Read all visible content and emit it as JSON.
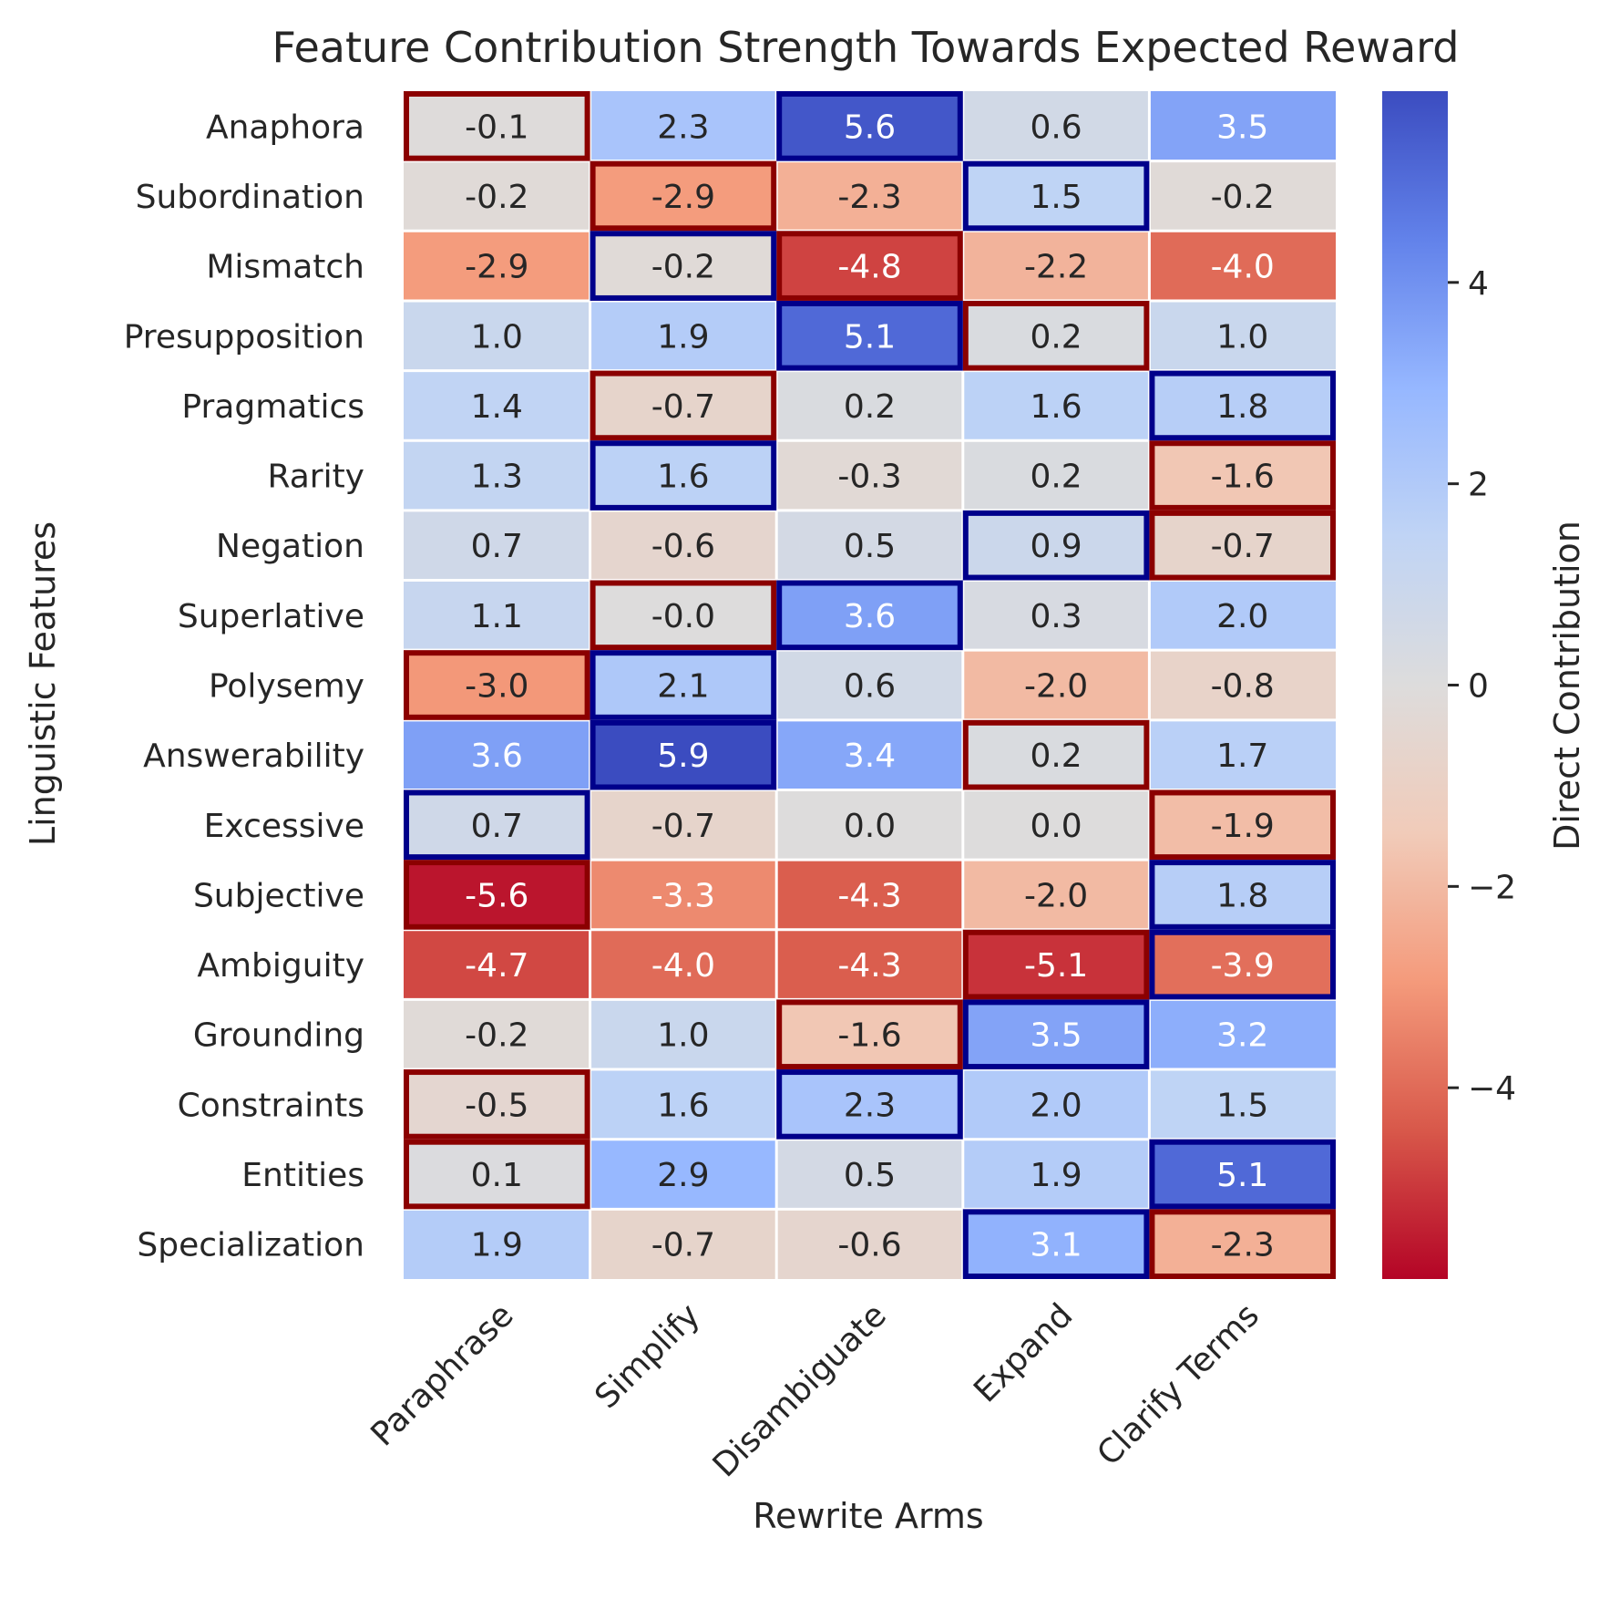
{
  "chart_data": {
    "type": "heatmap",
    "title": "Feature Contribution Strength Towards Expected Reward",
    "xlabel": "Rewrite Arms",
    "ylabel": "Linguistic Features",
    "colorbar_label": "Direct Contribution",
    "colormap": "coolwarm_r",
    "vlim": [
      -5.9,
      5.9
    ],
    "colorbar_ticks": [
      4,
      2,
      0,
      -2,
      -4
    ],
    "colorbar_tick_labels": [
      "4",
      "2",
      "0",
      "−2",
      "−4"
    ],
    "columns": [
      "Paraphrase",
      "Simplify",
      "Disambiguate",
      "Expand",
      "Clarify Terms"
    ],
    "rows": [
      "Anaphora",
      "Subordination",
      "Mismatch",
      "Presupposition",
      "Pragmatics",
      "Rarity",
      "Negation",
      "Superlative",
      "Polysemy",
      "Answerability",
      "Excessive",
      "Subjective",
      "Ambiguity",
      "Grounding",
      "Constraints",
      "Entities",
      "Specialization"
    ],
    "values": [
      [
        -0.1,
        2.3,
        5.6,
        0.6,
        3.5
      ],
      [
        -0.2,
        -2.9,
        -2.3,
        1.5,
        -0.2
      ],
      [
        -2.9,
        -0.2,
        -4.8,
        -2.2,
        -4.0
      ],
      [
        1.0,
        1.9,
        5.1,
        0.2,
        1.0
      ],
      [
        1.4,
        -0.7,
        0.2,
        1.6,
        1.8
      ],
      [
        1.3,
        1.6,
        -0.3,
        0.2,
        -1.6
      ],
      [
        0.7,
        -0.6,
        0.5,
        0.9,
        -0.7
      ],
      [
        1.1,
        -0.0,
        3.6,
        0.3,
        2.0
      ],
      [
        -3.0,
        2.1,
        0.6,
        -2.0,
        -0.8
      ],
      [
        3.6,
        5.9,
        3.4,
        0.2,
        1.7
      ],
      [
        0.7,
        -0.7,
        0.0,
        0.0,
        -1.9
      ],
      [
        -5.6,
        -3.3,
        -4.3,
        -2.0,
        1.8
      ],
      [
        -4.7,
        -4.0,
        -4.3,
        -5.1,
        -3.9
      ],
      [
        -0.2,
        1.0,
        -1.6,
        3.5,
        3.2
      ],
      [
        -0.5,
        1.6,
        2.3,
        2.0,
        1.5
      ],
      [
        0.1,
        2.9,
        0.5,
        1.9,
        5.1
      ],
      [
        1.9,
        -0.7,
        -0.6,
        3.1,
        -2.3
      ]
    ],
    "labels": [
      [
        "-0.1",
        "2.3",
        "5.6",
        "0.6",
        "3.5"
      ],
      [
        "-0.2",
        "-2.9",
        "-2.3",
        "1.5",
        "-0.2"
      ],
      [
        "-2.9",
        "-0.2",
        "-4.8",
        "-2.2",
        "-4.0"
      ],
      [
        "1.0",
        "1.9",
        "5.1",
        "0.2",
        "1.0"
      ],
      [
        "1.4",
        "-0.7",
        "0.2",
        "1.6",
        "1.8"
      ],
      [
        "1.3",
        "1.6",
        "-0.3",
        "0.2",
        "-1.6"
      ],
      [
        "0.7",
        "-0.6",
        "0.5",
        "0.9",
        "-0.7"
      ],
      [
        "1.1",
        "-0.0",
        "3.6",
        "0.3",
        "2.0"
      ],
      [
        "-3.0",
        "2.1",
        "0.6",
        "-2.0",
        "-0.8"
      ],
      [
        "3.6",
        "5.9",
        "3.4",
        "0.2",
        "1.7"
      ],
      [
        "0.7",
        "-0.7",
        "0.0",
        "0.0",
        "-1.9"
      ],
      [
        "-5.6",
        "-3.3",
        "-4.3",
        "-2.0",
        "1.8"
      ],
      [
        "-4.7",
        "-4.0",
        "-4.3",
        "-5.1",
        "-3.9"
      ],
      [
        "-0.2",
        "1.0",
        "-1.6",
        "3.5",
        "3.2"
      ],
      [
        "-0.5",
        "1.6",
        "2.3",
        "2.0",
        "1.5"
      ],
      [
        "0.1",
        "2.9",
        "0.5",
        "1.9",
        "5.1"
      ],
      [
        "1.9",
        "-0.7",
        "-0.6",
        "3.1",
        "-2.3"
      ]
    ],
    "highlights": {
      "strongest_positive": [
        [
          0,
          2
        ],
        [
          1,
          3
        ],
        [
          2,
          1
        ],
        [
          3,
          2
        ],
        [
          4,
          4
        ],
        [
          5,
          1
        ],
        [
          6,
          3
        ],
        [
          7,
          2
        ],
        [
          8,
          1
        ],
        [
          9,
          1
        ],
        [
          10,
          0
        ],
        [
          11,
          4
        ],
        [
          12,
          4
        ],
        [
          13,
          3
        ],
        [
          14,
          2
        ],
        [
          15,
          4
        ],
        [
          16,
          3
        ]
      ],
      "strongest_negative": [
        [
          0,
          0
        ],
        [
          1,
          1
        ],
        [
          2,
          2
        ],
        [
          3,
          3
        ],
        [
          4,
          1
        ],
        [
          5,
          4
        ],
        [
          6,
          4
        ],
        [
          7,
          1
        ],
        [
          8,
          0
        ],
        [
          9,
          3
        ],
        [
          10,
          4
        ],
        [
          11,
          0
        ],
        [
          12,
          3
        ],
        [
          13,
          2
        ],
        [
          14,
          0
        ],
        [
          15,
          0
        ],
        [
          16,
          4
        ]
      ],
      "positive_color": "#00008b",
      "negative_color": "#8b0000"
    }
  }
}
